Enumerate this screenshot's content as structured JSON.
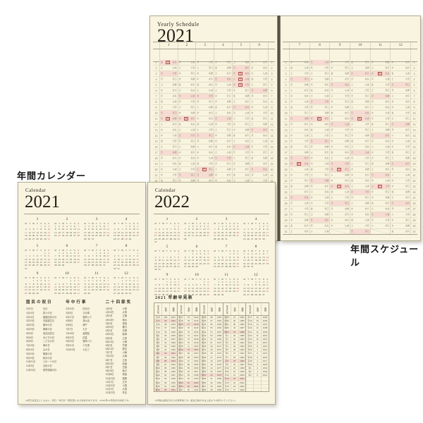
{
  "labels": {
    "annual_calendar": "年間カレンダー",
    "annual_schedule": "年間スケジュール"
  },
  "colors": {
    "paper": "#f8f4df",
    "pink_highlight": "#f7dbd2",
    "red": "#b0524a",
    "ink": "#35322a",
    "grid": "#ded7bc"
  },
  "yearly_schedule": {
    "title_small": "Yearly Schedule",
    "year": "2021",
    "left_months": [
      1,
      2,
      3,
      4,
      5,
      6
    ],
    "right_months": [
      7,
      8,
      9,
      10,
      11,
      12
    ],
    "rows": 31,
    "weekday_kanji": [
      "月",
      "火",
      "水",
      "木",
      "金",
      "土",
      "日"
    ],
    "rokuyo": [
      "先勝",
      "友引",
      "先負",
      "仏滅",
      "大安",
      "赤口"
    ],
    "holiday_mark": "祝",
    "months": [
      {
        "m": 1,
        "days": 31,
        "fd": 4
      },
      {
        "m": 2,
        "days": 28,
        "fd": 0
      },
      {
        "m": 3,
        "days": 31,
        "fd": 0
      },
      {
        "m": 4,
        "days": 30,
        "fd": 3
      },
      {
        "m": 5,
        "days": 31,
        "fd": 5
      },
      {
        "m": 6,
        "days": 30,
        "fd": 1
      },
      {
        "m": 7,
        "days": 31,
        "fd": 3
      },
      {
        "m": 8,
        "days": 31,
        "fd": 6
      },
      {
        "m": 9,
        "days": 30,
        "fd": 2
      },
      {
        "m": 10,
        "days": 31,
        "fd": 4
      },
      {
        "m": 11,
        "days": 30,
        "fd": 0
      },
      {
        "m": 12,
        "days": 31,
        "fd": 2
      }
    ],
    "holidays": [
      "1-1",
      "1-11",
      "2-11",
      "2-23",
      "3-20",
      "4-29",
      "5-3",
      "5-4",
      "5-5",
      "7-19",
      "8-11",
      "9-20",
      "9-23",
      "10-11",
      "11-3",
      "11-23"
    ]
  },
  "calendar2021": {
    "title_small": "Calendar",
    "year": "2021",
    "dow_header": [
      "M",
      "T",
      "W",
      "T",
      "F",
      "S",
      "S"
    ],
    "months": [
      {
        "m": 1,
        "days": 31,
        "fd": 4
      },
      {
        "m": 2,
        "days": 28,
        "fd": 0
      },
      {
        "m": 3,
        "days": 31,
        "fd": 0
      },
      {
        "m": 4,
        "days": 30,
        "fd": 3
      },
      {
        "m": 5,
        "days": 31,
        "fd": 5
      },
      {
        "m": 6,
        "days": 30,
        "fd": 1
      },
      {
        "m": 7,
        "days": 31,
        "fd": 3
      },
      {
        "m": 8,
        "days": 31,
        "fd": 6
      },
      {
        "m": 9,
        "days": 30,
        "fd": 2
      },
      {
        "m": 10,
        "days": 31,
        "fd": 4
      },
      {
        "m": 11,
        "days": 30,
        "fd": 0
      },
      {
        "m": 12,
        "days": 31,
        "fd": 2
      }
    ],
    "holidays": [
      "1-1",
      "1-11",
      "2-11",
      "2-23",
      "3-20",
      "4-29",
      "5-3",
      "5-4",
      "5-5",
      "7-19",
      "8-11",
      "9-20",
      "9-23",
      "10-11",
      "11-3",
      "11-23"
    ],
    "tables": {
      "holidays": {
        "title": "国民の祝日",
        "rows": [
          [
            "1月1日",
            "元日"
          ],
          [
            "1月11日",
            "成人の日"
          ],
          [
            "2月11日",
            "建国記念の日"
          ],
          [
            "2月23日",
            "天皇誕生日"
          ],
          [
            "3月20日",
            "春分の日"
          ],
          [
            "4月29日",
            "昭和の日"
          ],
          [
            "5月3日",
            "憲法記念日"
          ],
          [
            "5月4日",
            "みどりの日"
          ],
          [
            "5月5日",
            "こどもの日"
          ],
          [
            "7月19日",
            "海の日"
          ],
          [
            "8月11日",
            "山の日"
          ],
          [
            "9月20日",
            "敬老の日"
          ],
          [
            "9月23日",
            "秋分の日"
          ],
          [
            "10月11日",
            "スポーツの日"
          ],
          [
            "11月3日",
            "文化の日"
          ],
          [
            "11月23日",
            "勤労感謝の日"
          ]
        ]
      },
      "events": {
        "title": "年中行事",
        "rows": [
          [
            "2月12日",
            "旧元日"
          ],
          [
            "3月3日",
            "ひな祭"
          ],
          [
            "3月17日",
            "彼岸入り"
          ],
          [
            "4月8日",
            "灌仏会"
          ],
          [
            "5月5日",
            "端午"
          ],
          [
            "7月7日",
            "七夕"
          ],
          [
            "7月15日",
            "盂蘭盆"
          ],
          [
            "8月22日",
            "旧盆"
          ],
          [
            "9月20日",
            "彼岸入り"
          ],
          [
            "9月21日",
            "十五夜"
          ],
          [
            "11月15日",
            "七五三"
          ]
        ]
      },
      "sekki": {
        "title": "二十四節気",
        "rows": [
          [
            "1月5日",
            "小寒"
          ],
          [
            "1月20日",
            "大寒"
          ],
          [
            "2月3日",
            "立春"
          ],
          [
            "2月18日",
            "雨水"
          ],
          [
            "3月5日",
            "啓蟄"
          ],
          [
            "3月20日",
            "春分"
          ],
          [
            "4月4日",
            "清明"
          ],
          [
            "4月20日",
            "穀雨"
          ],
          [
            "5月5日",
            "立夏"
          ],
          [
            "5月21日",
            "小満"
          ],
          [
            "6月5日",
            "芒種"
          ],
          [
            "6月21日",
            "夏至"
          ],
          [
            "7月7日",
            "小暑"
          ],
          [
            "7月22日",
            "大暑"
          ],
          [
            "8月7日",
            "立秋"
          ],
          [
            "8月23日",
            "処暑"
          ],
          [
            "9月7日",
            "白露"
          ],
          [
            "9月23日",
            "秋分"
          ],
          [
            "10月8日",
            "寒露"
          ],
          [
            "10月23日",
            "霜降"
          ],
          [
            "11月7日",
            "立冬"
          ],
          [
            "11月22日",
            "小雪"
          ],
          [
            "12月7日",
            "大雪"
          ],
          [
            "12月22日",
            "冬至"
          ]
        ]
      }
    },
    "footnote": "※祝日法改正にともない、祝日・休日が一部変更になる場合があります。(2020年12月時点の情報です)"
  },
  "calendar2022": {
    "title_small": "Calendar",
    "year": "2022",
    "dow_header": [
      "M",
      "T",
      "W",
      "T",
      "F",
      "S",
      "S"
    ],
    "months": [
      {
        "m": 1,
        "days": 31,
        "fd": 5
      },
      {
        "m": 2,
        "days": 28,
        "fd": 1
      },
      {
        "m": 3,
        "days": 31,
        "fd": 1
      },
      {
        "m": 4,
        "days": 30,
        "fd": 4
      },
      {
        "m": 5,
        "days": 31,
        "fd": 6
      },
      {
        "m": 6,
        "days": 30,
        "fd": 2
      },
      {
        "m": 7,
        "days": 31,
        "fd": 4
      },
      {
        "m": 8,
        "days": 31,
        "fd": 0
      },
      {
        "m": 9,
        "days": 30,
        "fd": 3
      },
      {
        "m": 10,
        "days": 31,
        "fd": 5
      },
      {
        "m": 11,
        "days": 30,
        "fd": 1
      },
      {
        "m": 12,
        "days": 31,
        "fd": 3
      }
    ],
    "holidays": [
      "1-1",
      "1-10",
      "2-11",
      "2-23",
      "3-21",
      "4-29",
      "5-3",
      "5-4",
      "5-5",
      "7-18",
      "8-11",
      "9-19",
      "9-23",
      "10-10",
      "11-3",
      "11-23"
    ],
    "age_table": {
      "title": "2021 年齢早見表",
      "col_headers": [
        "生まれ年",
        "年齢",
        "西暦"
      ],
      "start_year": 1921,
      "end_year": 2021,
      "base_year": 2021,
      "groups": 5,
      "rows_per_group": 21,
      "eras": [
        {
          "name": "大",
          "from": 1912
        },
        {
          "name": "昭",
          "from": 1926
        },
        {
          "name": "平",
          "from": 1989
        },
        {
          "name": "令",
          "from": 2019
        }
      ],
      "highlight_ages": [
        20,
        25,
        33,
        42,
        60,
        61,
        70,
        77,
        80,
        88,
        90,
        99
      ]
    },
    "footnote": "※年齢は誕生日からの満年齢です。誕生日前の方は上記より1歳引いてください。"
  }
}
